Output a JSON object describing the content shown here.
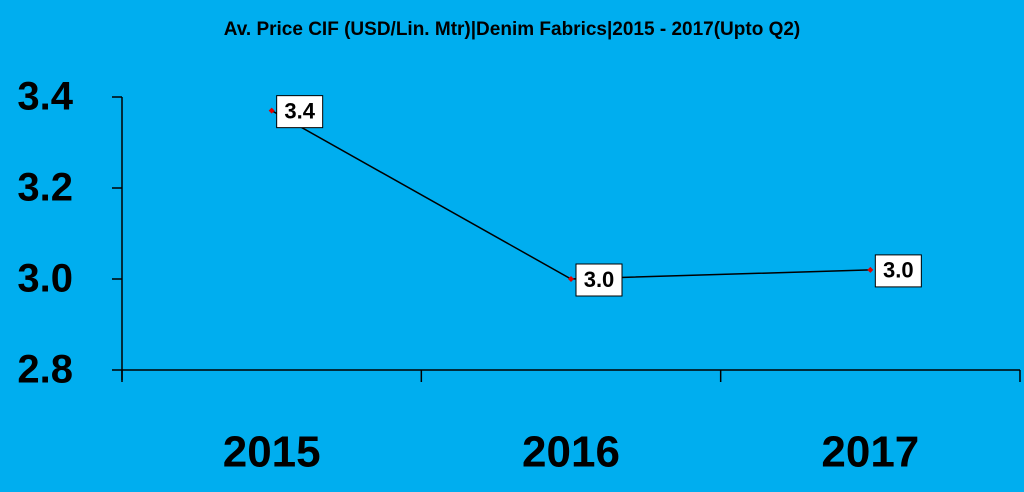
{
  "chart_data": {
    "type": "line",
    "title": "Av. Price CIF (USD/Lin. Mtr)|Denim Fabrics|2015 - 2017(Upto Q2)",
    "categories": [
      "2015",
      "2016",
      "2017"
    ],
    "series": [
      {
        "color": "#000000",
        "marker_color": "#e00000",
        "values": [
          3.37,
          3.0,
          3.02
        ],
        "value_labels": [
          "3.4",
          "3.0",
          "3.0"
        ]
      }
    ],
    "ylim": [
      2.8,
      3.4
    ],
    "yticks": [
      2.8,
      {
        "value": 3,
        "label": "3.0"
      },
      3.2,
      3.4
    ],
    "grid": false,
    "background": "#00aeef"
  }
}
